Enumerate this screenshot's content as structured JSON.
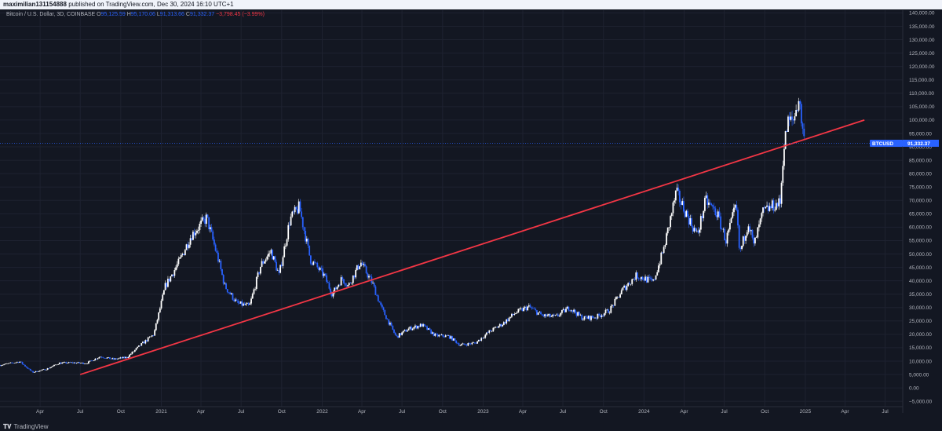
{
  "header": {
    "author": "maximilian131154888",
    "published": "published on TradingView.com, Dec 30, 2024 16:10 UTC+1"
  },
  "legend": {
    "symbol": "Bitcoin / U.S. Dollar, 3D, COINBASE",
    "o_label": "O",
    "o_value": "95,125.59",
    "h_label": "H",
    "h_value": "95,170.06",
    "l_label": "L",
    "l_value": "91,313.66",
    "c_label": "C",
    "c_value": "91,332.37",
    "change": "−3,798.45 (−3.99%)"
  },
  "footer": {
    "brand": "TradingView"
  },
  "colors": {
    "background": "#131722",
    "up_candle": "#ffffff",
    "down_candle": "#2962ff",
    "trendline": "#f23645",
    "price_badge": "#2962ff"
  },
  "chart_data": {
    "type": "line",
    "title": "",
    "x_ticks": [
      "Apr",
      "Jul",
      "Oct",
      "2021",
      "Apr",
      "Jul",
      "Oct",
      "2022",
      "Apr",
      "Jul",
      "Oct",
      "2023",
      "Apr",
      "Jul",
      "Oct",
      "2024",
      "Apr",
      "Jul",
      "Oct",
      "2025",
      "Apr",
      "Jul"
    ],
    "x_tick_dates": [
      "2020-04-01",
      "2020-07-01",
      "2020-10-01",
      "2021-01-01",
      "2021-04-01",
      "2021-07-01",
      "2021-10-01",
      "2022-01-01",
      "2022-04-01",
      "2022-07-01",
      "2022-10-01",
      "2023-01-01",
      "2023-04-01",
      "2023-07-01",
      "2023-10-01",
      "2024-01-01",
      "2024-04-01",
      "2024-07-01",
      "2024-10-01",
      "2025-01-01",
      "2025-04-01",
      "2025-07-01"
    ],
    "y_ticks": [
      "140,000.00",
      "135,000.00",
      "130,000.00",
      "125,000.00",
      "120,000.00",
      "115,000.00",
      "110,000.00",
      "105,000.00",
      "100,000.00",
      "95,000.00",
      "90,000.00",
      "85,000.00",
      "80,000.00",
      "75,000.00",
      "70,000.00",
      "65,000.00",
      "60,000.00",
      "55,000.00",
      "50,000.00",
      "45,000.00",
      "40,000.00",
      "35,000.00",
      "30,000.00",
      "25,000.00",
      "20,000.00",
      "15,000.00",
      "10,000.00",
      "5,000.00",
      "0.00",
      "−5,000.00"
    ],
    "y_tick_values": [
      140000,
      135000,
      130000,
      125000,
      120000,
      115000,
      110000,
      105000,
      100000,
      95000,
      90000,
      85000,
      80000,
      75000,
      70000,
      65000,
      60000,
      55000,
      50000,
      45000,
      40000,
      35000,
      30000,
      25000,
      20000,
      15000,
      10000,
      5000,
      0,
      -5000
    ],
    "ylim": [
      -7000,
      141000
    ],
    "grid": true,
    "series": [
      {
        "values_kind": "close",
        "x": [
          "2020-01-01",
          "2020-02-15",
          "2020-03-15",
          "2020-04-15",
          "2020-05-15",
          "2020-06-15",
          "2020-07-15",
          "2020-08-15",
          "2020-09-15",
          "2020-10-15",
          "2020-11-15",
          "2020-12-15",
          "2021-01-10",
          "2021-02-10",
          "2021-03-10",
          "2021-04-14",
          "2021-05-10",
          "2021-05-25",
          "2021-06-22",
          "2021-07-20",
          "2021-08-15",
          "2021-09-07",
          "2021-09-25",
          "2021-10-20",
          "2021-11-10",
          "2021-12-05",
          "2022-01-05",
          "2022-01-24",
          "2022-02-15",
          "2022-03-01",
          "2022-03-29",
          "2022-04-25",
          "2022-05-15",
          "2022-06-18",
          "2022-07-15",
          "2022-08-15",
          "2022-09-15",
          "2022-10-15",
          "2022-11-10",
          "2022-12-15",
          "2023-01-15",
          "2023-02-15",
          "2023-03-15",
          "2023-04-14",
          "2023-05-15",
          "2023-06-15",
          "2023-07-15",
          "2023-08-15",
          "2023-09-15",
          "2023-10-15",
          "2023-11-15",
          "2023-12-15",
          "2024-01-22",
          "2024-02-15",
          "2024-03-14",
          "2024-04-15",
          "2024-05-01",
          "2024-05-20",
          "2024-06-15",
          "2024-07-05",
          "2024-07-28",
          "2024-08-05",
          "2024-08-25",
          "2024-09-06",
          "2024-09-27",
          "2024-10-20",
          "2024-11-05",
          "2024-11-12",
          "2024-11-22",
          "2024-12-05",
          "2024-12-17",
          "2024-12-30"
        ],
        "values": [
          8500,
          9800,
          5800,
          7000,
          9300,
          9400,
          9200,
          11700,
          10700,
          11400,
          16000,
          20000,
          38000,
          47000,
          57000,
          63500,
          48000,
          38000,
          31500,
          30500,
          46000,
          51000,
          42000,
          63000,
          67500,
          48000,
          42000,
          35000,
          41000,
          38000,
          47000,
          39000,
          30000,
          19000,
          22000,
          23500,
          19500,
          19300,
          16000,
          16800,
          21000,
          24000,
          28000,
          30300,
          27000,
          26500,
          30000,
          26000,
          26500,
          29000,
          37000,
          42000,
          39500,
          52000,
          73000,
          62000,
          57000,
          70000,
          65000,
          55000,
          68000,
          50000,
          62000,
          53000,
          65500,
          68000,
          69000,
          88000,
          99000,
          100000,
          108000,
          91332
        ]
      }
    ],
    "trendline": {
      "x": [
        "2020-07-01",
        "2025-05-15"
      ],
      "y": [
        5000,
        100000
      ]
    },
    "last_price": {
      "label": "BTCUSD",
      "value": 91332.37,
      "value_text": "91,332.37"
    }
  }
}
